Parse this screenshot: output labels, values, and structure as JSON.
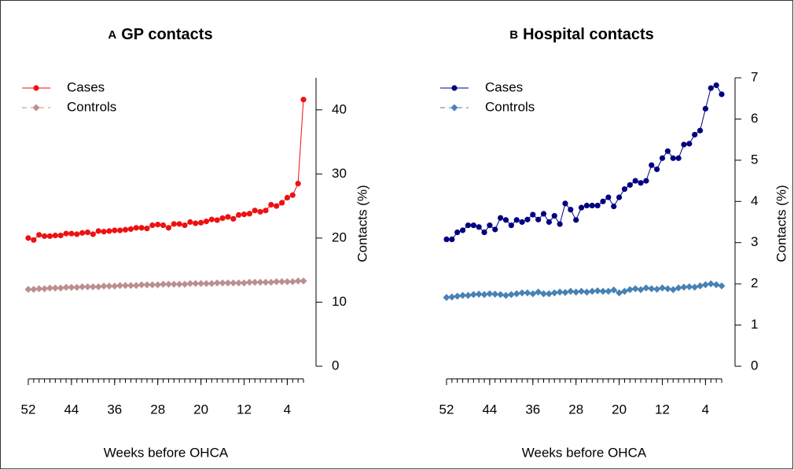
{
  "chart_data": [
    {
      "type": "line",
      "panel_label": "A",
      "title": "GP contacts",
      "xlabel": "Weeks before OHCA",
      "ylabel": "Contacts (%)",
      "x": [
        52,
        51,
        50,
        49,
        48,
        47,
        46,
        45,
        44,
        43,
        42,
        41,
        40,
        39,
        38,
        37,
        36,
        35,
        34,
        33,
        32,
        31,
        30,
        29,
        28,
        27,
        26,
        25,
        24,
        23,
        22,
        21,
        20,
        19,
        18,
        17,
        16,
        15,
        14,
        13,
        12,
        11,
        10,
        9,
        8,
        7,
        6,
        5,
        4,
        3,
        2,
        1
      ],
      "xlim": [
        52,
        1
      ],
      "xticks": [
        52,
        44,
        36,
        28,
        20,
        12,
        4
      ],
      "ylim": [
        0,
        45
      ],
      "yticks": [
        0,
        10,
        20,
        30,
        40
      ],
      "legend": "upper-left",
      "series": [
        {
          "name": "Cases",
          "color": "#ee1111",
          "marker": "circle",
          "dash": false,
          "values": [
            20.0,
            19.7,
            20.5,
            20.3,
            20.3,
            20.4,
            20.4,
            20.7,
            20.7,
            20.6,
            20.8,
            20.9,
            20.6,
            21.1,
            21.0,
            21.1,
            21.2,
            21.2,
            21.3,
            21.4,
            21.6,
            21.6,
            21.5,
            22.0,
            22.1,
            22.0,
            21.6,
            22.2,
            22.2,
            22.0,
            22.5,
            22.3,
            22.4,
            22.6,
            22.9,
            22.8,
            23.1,
            23.3,
            23.0,
            23.6,
            23.7,
            23.8,
            24.3,
            24.1,
            24.3,
            25.2,
            25.0,
            25.5,
            26.3,
            26.7,
            28.5,
            41.6
          ]
        },
        {
          "name": "Controls",
          "color": "#bc8f8f",
          "marker": "diamond",
          "dash": true,
          "values": [
            12.0,
            12.0,
            12.1,
            12.1,
            12.2,
            12.2,
            12.2,
            12.3,
            12.3,
            12.3,
            12.4,
            12.4,
            12.4,
            12.4,
            12.5,
            12.5,
            12.5,
            12.6,
            12.6,
            12.6,
            12.6,
            12.7,
            12.7,
            12.7,
            12.7,
            12.8,
            12.8,
            12.8,
            12.8,
            12.8,
            12.9,
            12.9,
            12.9,
            12.9,
            12.9,
            13.0,
            13.0,
            13.0,
            13.0,
            13.0,
            13.0,
            13.1,
            13.1,
            13.1,
            13.1,
            13.1,
            13.2,
            13.2,
            13.2,
            13.2,
            13.3,
            13.3
          ]
        }
      ]
    },
    {
      "type": "line",
      "panel_label": "B",
      "title": "Hospital contacts",
      "xlabel": "Weeks before OHCA",
      "ylabel": "Contacts (%)",
      "x": [
        52,
        51,
        50,
        49,
        48,
        47,
        46,
        45,
        44,
        43,
        42,
        41,
        40,
        39,
        38,
        37,
        36,
        35,
        34,
        33,
        32,
        31,
        30,
        29,
        28,
        27,
        26,
        25,
        24,
        23,
        22,
        21,
        20,
        19,
        18,
        17,
        16,
        15,
        14,
        13,
        12,
        11,
        10,
        9,
        8,
        7,
        6,
        5,
        4,
        3,
        2,
        1
      ],
      "xlim": [
        52,
        1
      ],
      "xticks": [
        52,
        44,
        36,
        28,
        20,
        12,
        4
      ],
      "ylim": [
        0,
        7
      ],
      "yticks": [
        0,
        1,
        2,
        3,
        4,
        5,
        6,
        7
      ],
      "legend": "upper-left",
      "series": [
        {
          "name": "Cases",
          "color": "#000080",
          "marker": "circle",
          "dash": false,
          "values": [
            3.08,
            3.08,
            3.25,
            3.3,
            3.42,
            3.42,
            3.38,
            3.25,
            3.42,
            3.32,
            3.6,
            3.55,
            3.42,
            3.55,
            3.5,
            3.56,
            3.68,
            3.56,
            3.7,
            3.5,
            3.65,
            3.45,
            3.95,
            3.8,
            3.55,
            3.85,
            3.9,
            3.9,
            3.9,
            4.0,
            4.1,
            3.88,
            4.1,
            4.3,
            4.4,
            4.5,
            4.45,
            4.5,
            4.88,
            4.78,
            5.05,
            5.22,
            5.05,
            5.05,
            5.38,
            5.4,
            5.62,
            5.72,
            6.25,
            6.75,
            6.82,
            6.6
          ]
        },
        {
          "name": "Controls",
          "color": "#4682b4",
          "marker": "diamond",
          "dash": true,
          "values": [
            1.67,
            1.68,
            1.7,
            1.72,
            1.72,
            1.74,
            1.75,
            1.74,
            1.76,
            1.75,
            1.74,
            1.72,
            1.74,
            1.76,
            1.78,
            1.78,
            1.76,
            1.8,
            1.76,
            1.76,
            1.78,
            1.8,
            1.79,
            1.82,
            1.8,
            1.82,
            1.8,
            1.82,
            1.83,
            1.82,
            1.82,
            1.85,
            1.78,
            1.82,
            1.86,
            1.88,
            1.86,
            1.9,
            1.88,
            1.87,
            1.9,
            1.88,
            1.86,
            1.9,
            1.92,
            1.93,
            1.92,
            1.95,
            1.98,
            2.0,
            1.98,
            1.95
          ]
        }
      ]
    }
  ]
}
